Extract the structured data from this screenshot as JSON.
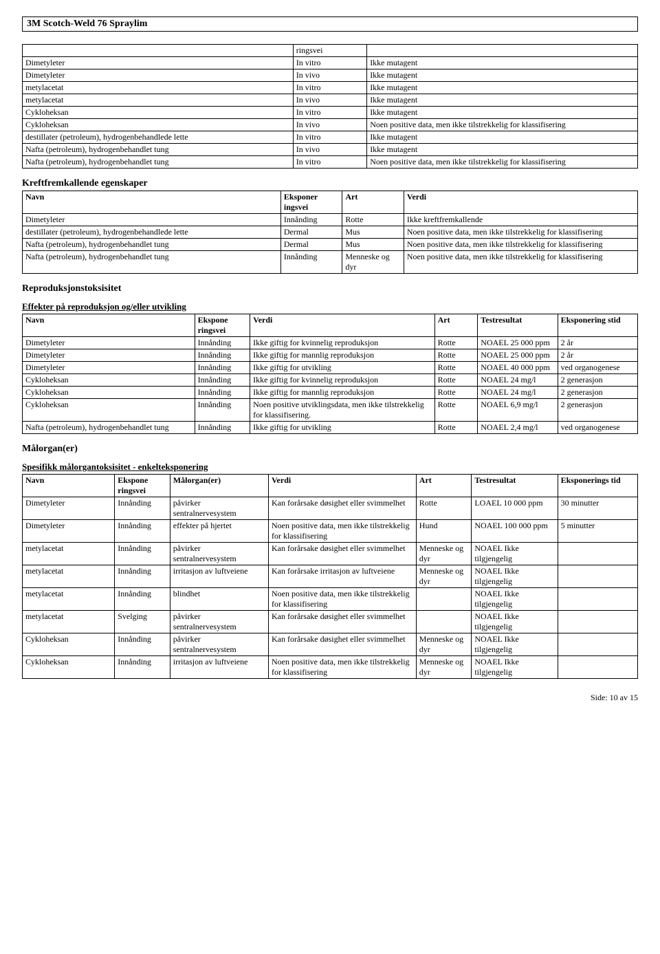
{
  "doc_title": "3M Scotch-Weld 76 Spraylim",
  "table1": {
    "header_cell": "ringsvei",
    "rows": [
      [
        "Dimetyleter",
        "In vitro",
        "Ikke mutagent"
      ],
      [
        "Dimetyleter",
        "In vivo",
        "Ikke mutagent"
      ],
      [
        "metylacetat",
        "In vitro",
        "Ikke mutagent"
      ],
      [
        "metylacetat",
        "In vivo",
        "Ikke mutagent"
      ],
      [
        "Cykloheksan",
        "In vitro",
        "Ikke mutagent"
      ],
      [
        "Cykloheksan",
        "In vivo",
        "Noen positive data, men ikke tilstrekkelig for klassifisering"
      ],
      [
        "destillater (petroleum), hydrogenbehandlede lette",
        "In vitro",
        "Ikke mutagent"
      ],
      [
        "Nafta (petroleum), hydrogenbehandlet tung",
        "In vivo",
        "Ikke mutagent"
      ],
      [
        "Nafta (petroleum), hydrogenbehandlet tung",
        "In vitro",
        "Noen positive data, men ikke tilstrekkelig for klassifisering"
      ]
    ]
  },
  "section2_title": "Kreftfremkallende egenskaper",
  "table2": {
    "headers": [
      "Navn",
      "Eksponer\ningsvei",
      "Art",
      "Verdi"
    ],
    "rows": [
      [
        "Dimetyleter",
        "Innånding",
        "Rotte",
        "Ikke kreftfremkallende"
      ],
      [
        "destillater (petroleum), hydrogenbehandlede lette",
        "Dermal",
        "Mus",
        "Noen positive data, men ikke tilstrekkelig for klassifisering"
      ],
      [
        "Nafta (petroleum), hydrogenbehandlet tung",
        "Dermal",
        "Mus",
        "Noen positive data, men ikke tilstrekkelig for klassifisering"
      ],
      [
        "Nafta (petroleum), hydrogenbehandlet tung",
        "Innånding",
        "Menneske og dyr",
        "Noen positive data, men ikke tilstrekkelig for klassifisering"
      ]
    ]
  },
  "section3_title": "Reproduksjonstoksisitet",
  "section3_sub": "Effekter på reproduksjon og/eller utvikling",
  "table3": {
    "headers": [
      "Navn",
      "Ekspone\nringsvei",
      "Verdi",
      "Art",
      "Testresultat",
      "Eksponering\nstid"
    ],
    "rows": [
      [
        "Dimetyleter",
        "Innånding",
        "Ikke giftig for kvinnelig reproduksjon",
        "Rotte",
        "NOAEL 25 000 ppm",
        "2 år"
      ],
      [
        "Dimetyleter",
        "Innånding",
        "Ikke giftig for mannlig reproduksjon",
        "Rotte",
        "NOAEL 25 000 ppm",
        "2 år"
      ],
      [
        "Dimetyleter",
        "Innånding",
        "Ikke giftig for utvikling",
        "Rotte",
        "NOAEL 40 000 ppm",
        "ved organogenese"
      ],
      [
        "Cykloheksan",
        "Innånding",
        "Ikke giftig for kvinnelig reproduksjon",
        "Rotte",
        "NOAEL 24 mg/l",
        "2 generasjon"
      ],
      [
        "Cykloheksan",
        "Innånding",
        "Ikke giftig for mannlig reproduksjon",
        "Rotte",
        "NOAEL 24 mg/l",
        "2 generasjon"
      ],
      [
        "Cykloheksan",
        "Innånding",
        "Noen positive utviklingsdata, men ikke tilstrekkelig for klassifisering.",
        "Rotte",
        "NOAEL 6,9 mg/l",
        "2 generasjon"
      ],
      [
        "Nafta (petroleum), hydrogenbehandlet tung",
        "Innånding",
        "Ikke giftig for utvikling",
        "Rotte",
        "NOAEL 2,4 mg/l",
        "ved organogenese"
      ]
    ]
  },
  "section4_title": "Målorgan(er)",
  "section4_sub": "Spesifikk målorgantoksisitet - enkelteksponering",
  "table4": {
    "headers": [
      "Navn",
      "Ekspone\nringsvei",
      "Målorgan(er)",
      "Verdi",
      "Art",
      "Testresultat",
      "Eksponerings\ntid"
    ],
    "rows": [
      [
        "Dimetyleter",
        "Innånding",
        "påvirker sentralnervesystem",
        "Kan forårsake døsighet eller svimmelhet",
        "Rotte",
        "LOAEL 10 000 ppm",
        "30 minutter"
      ],
      [
        "Dimetyleter",
        "Innånding",
        "effekter på hjertet",
        "Noen positive data, men ikke tilstrekkelig for klassifisering",
        "Hund",
        "NOAEL 100 000 ppm",
        "5 minutter"
      ],
      [
        "metylacetat",
        "Innånding",
        "påvirker sentralnervesystem",
        "Kan forårsake døsighet eller svimmelhet",
        "Menneske og dyr",
        "NOAEL Ikke tilgjengelig",
        ""
      ],
      [
        "metylacetat",
        "Innånding",
        "irritasjon av luftveiene",
        "Kan forårsake irritasjon av luftveiene",
        "Menneske og dyr",
        "NOAEL Ikke tilgjengelig",
        ""
      ],
      [
        "metylacetat",
        "Innånding",
        "blindhet",
        "Noen positive data, men ikke tilstrekkelig for klassifisering",
        "",
        "NOAEL Ikke tilgjengelig",
        ""
      ],
      [
        "metylacetat",
        "Svelging",
        "påvirker sentralnervesystem",
        "Kan forårsake døsighet eller svimmelhet",
        "",
        "NOAEL Ikke tilgjengelig",
        ""
      ],
      [
        "Cykloheksan",
        "Innånding",
        "påvirker sentralnervesystem",
        "Kan forårsake døsighet eller svimmelhet",
        "Menneske og dyr",
        "NOAEL Ikke tilgjengelig",
        ""
      ],
      [
        "Cykloheksan",
        "Innånding",
        "irritasjon av luftveiene",
        "Noen positive data, men ikke tilstrekkelig for klassifisering",
        "Menneske og dyr",
        "NOAEL Ikke tilgjengelig",
        ""
      ]
    ]
  },
  "footer": "Side: 10 av  15"
}
